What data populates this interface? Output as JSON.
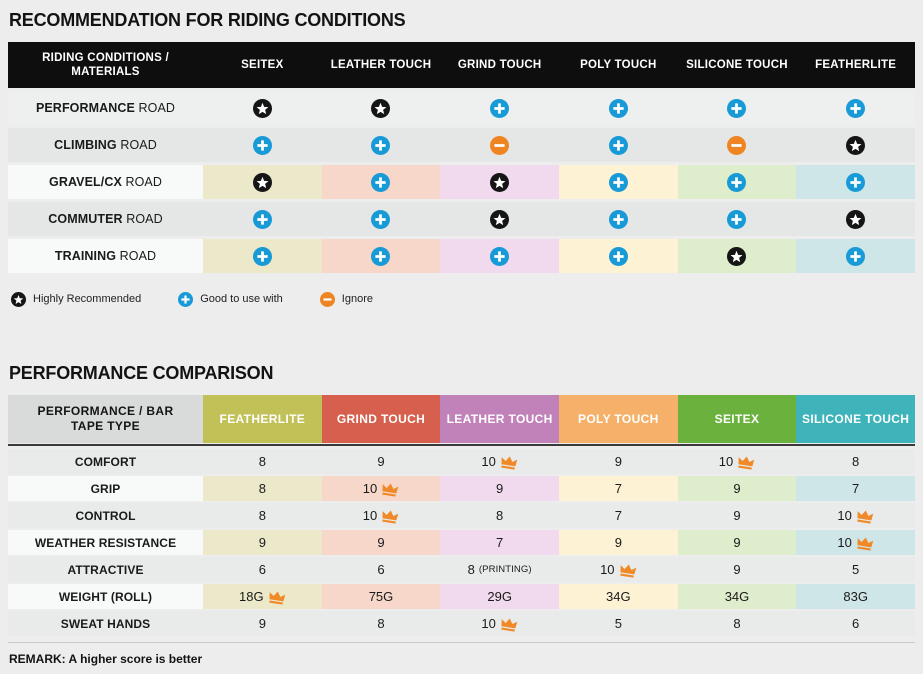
{
  "colors": {
    "page_bg": "#ededed",
    "table1_header_bg": "#0e0e0e",
    "row_gray_light": "#eef0f0",
    "row_gray": "#e5e7e7",
    "row_gray2": "#e9ebeb",
    "row_white": "#f8f9f9",
    "icon_star": "#151515",
    "icon_plus": "#189ad6",
    "icon_minus": "#ee8522",
    "icon_crown": "#f08a28",
    "column_tints": [
      "#ebe9c9",
      "#f7d7ca",
      "#f1daed",
      "#fdf3d4",
      "#deedcc",
      "#cfe6e8"
    ]
  },
  "legend": [
    {
      "icon": "star",
      "label": "Highly Recommended"
    },
    {
      "icon": "plus",
      "label": "Good to use with"
    },
    {
      "icon": "minus",
      "label": "Ignore"
    }
  ],
  "chart_data": [
    {
      "type": "table",
      "title": "RECOMMENDATION FOR RIDING CONDITIONS",
      "header": [
        "RIDING CONDITIONS / MATERIALS",
        "SEITEX",
        "LEATHER TOUCH",
        "GRIND TOUCH",
        "POLY TOUCH",
        "SILICONE TOUCH",
        "FEATHERLITE"
      ],
      "cell_legend": {
        "star": "Highly Recommended",
        "plus": "Good to use with",
        "minus": "Ignore"
      },
      "rows": [
        {
          "label_bold": "PERFORMANCE",
          "label_rest": "ROAD",
          "tinted": false,
          "shade": "light",
          "cells": [
            "star",
            "star",
            "plus",
            "plus",
            "plus",
            "plus"
          ]
        },
        {
          "label_bold": "CLIMBING",
          "label_rest": "ROAD",
          "tinted": false,
          "shade": "gray",
          "cells": [
            "plus",
            "plus",
            "minus",
            "plus",
            "minus",
            "star"
          ]
        },
        {
          "label_bold": "GRAVEL/CX",
          "label_rest": "ROAD",
          "tinted": true,
          "shade": "white",
          "cells": [
            "star",
            "plus",
            "star",
            "plus",
            "plus",
            "plus"
          ]
        },
        {
          "label_bold": "COMMUTER",
          "label_rest": "ROAD",
          "tinted": false,
          "shade": "gray",
          "cells": [
            "plus",
            "plus",
            "star",
            "plus",
            "plus",
            "star"
          ]
        },
        {
          "label_bold": "TRAINING",
          "label_rest": "ROAD",
          "tinted": true,
          "shade": "white",
          "cells": [
            "plus",
            "plus",
            "plus",
            "plus",
            "star",
            "plus"
          ]
        }
      ]
    },
    {
      "type": "table",
      "title": "PERFORMANCE COMPARISON",
      "row_header": "PERFORMANCE / BAR TAPE TYPE",
      "row_header_bg": "#d9dada",
      "columns": [
        {
          "label": "FEATHERLITE",
          "color": "#c1c158"
        },
        {
          "label": "GRIND TOUCH",
          "color": "#d6604d"
        },
        {
          "label": "LEATHER TOUCH",
          "color": "#c182ba"
        },
        {
          "label": "POLY TOUCH",
          "color": "#f5b169"
        },
        {
          "label": "SEITEX",
          "color": "#6ab23d"
        },
        {
          "label": "SILICONE TOUCH",
          "color": "#3eb3ba"
        }
      ],
      "rows": [
        {
          "label": "COMFORT",
          "tinted": false,
          "cells": [
            {
              "v": "8"
            },
            {
              "v": "9"
            },
            {
              "v": "10",
              "crown": true
            },
            {
              "v": "9"
            },
            {
              "v": "10",
              "crown": true
            },
            {
              "v": "8"
            }
          ]
        },
        {
          "label": "GRIP",
          "tinted": true,
          "cells": [
            {
              "v": "8"
            },
            {
              "v": "10",
              "crown": true
            },
            {
              "v": "9"
            },
            {
              "v": "7"
            },
            {
              "v": "9"
            },
            {
              "v": "7"
            }
          ]
        },
        {
          "label": "CONTROL",
          "tinted": false,
          "cells": [
            {
              "v": "8"
            },
            {
              "v": "10",
              "crown": true
            },
            {
              "v": "8"
            },
            {
              "v": "7"
            },
            {
              "v": "9"
            },
            {
              "v": "10",
              "crown": true
            }
          ]
        },
        {
          "label": "WEATHER RESISTANCE",
          "tinted": true,
          "cells": [
            {
              "v": "9"
            },
            {
              "v": "9"
            },
            {
              "v": "7"
            },
            {
              "v": "9"
            },
            {
              "v": "9"
            },
            {
              "v": "10",
              "crown": true
            }
          ]
        },
        {
          "label": "ATTRACTIVE",
          "tinted": false,
          "cells": [
            {
              "v": "6"
            },
            {
              "v": "6"
            },
            {
              "v": "8",
              "note": "(PRINTING)"
            },
            {
              "v": "10",
              "crown": true
            },
            {
              "v": "9"
            },
            {
              "v": "5"
            }
          ]
        },
        {
          "label": "WEIGHT (ROLL)",
          "tinted": true,
          "cells": [
            {
              "v": "18G",
              "crown": true
            },
            {
              "v": "75G"
            },
            {
              "v": "29G"
            },
            {
              "v": "34G"
            },
            {
              "v": "34G"
            },
            {
              "v": "83G"
            }
          ]
        },
        {
          "label": "SWEAT HANDS",
          "tinted": false,
          "cells": [
            {
              "v": "9"
            },
            {
              "v": "8"
            },
            {
              "v": "10",
              "crown": true
            },
            {
              "v": "5"
            },
            {
              "v": "8"
            },
            {
              "v": "6"
            }
          ]
        }
      ],
      "remark": "REMARK: A higher score is better"
    }
  ]
}
